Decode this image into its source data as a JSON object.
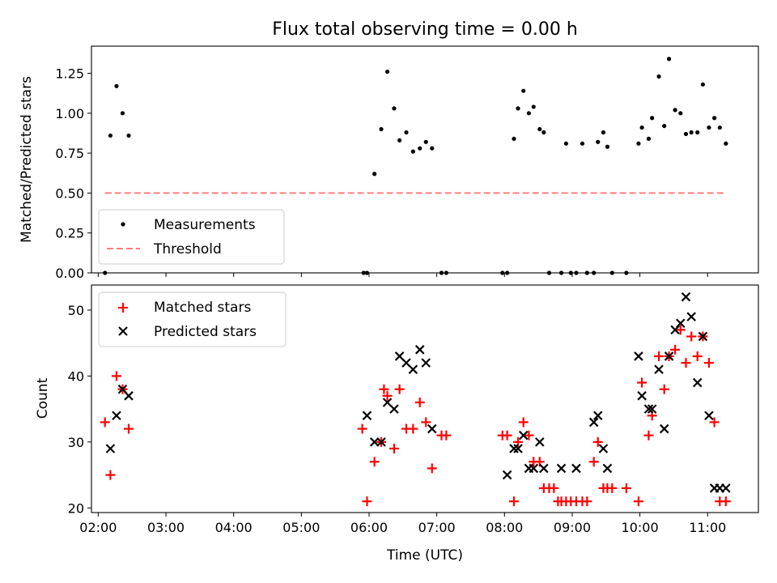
{
  "figure": {
    "title": "Flux total observing time = 0.00 h"
  },
  "chart_data": [
    {
      "type": "scatter",
      "panel": "top",
      "ylabel": "Matched/Predicted stars",
      "xlim": [
        1.9,
        11.75
      ],
      "ylim": [
        0,
        1.42
      ],
      "yticks": [
        0.0,
        0.25,
        0.5,
        0.75,
        1.0,
        1.25
      ],
      "ytick_labels": [
        "0.00",
        "0.25",
        "0.50",
        "0.75",
        "1.00",
        "1.25"
      ],
      "xticks": [
        2,
        3,
        4,
        5,
        6,
        7,
        8,
        9,
        10,
        11
      ],
      "legend": {
        "placement": "lower-left",
        "entries": [
          {
            "label": "Measurements",
            "marker": "dot",
            "color": "#000000"
          },
          {
            "label": "Threshold",
            "marker": "dashed-line",
            "color": "#ff7f7f"
          }
        ]
      },
      "series": [
        {
          "name": "Measurements",
          "color": "#000000",
          "marker": "dot",
          "x": [
            2.1,
            2.18,
            2.27,
            2.36,
            2.45,
            5.92,
            5.97,
            6.08,
            6.18,
            6.27,
            6.37,
            6.45,
            6.55,
            6.65,
            6.75,
            6.84,
            6.93,
            7.07,
            7.14,
            7.97,
            8.04,
            8.14,
            8.2,
            8.28,
            8.36,
            8.43,
            8.52,
            8.58,
            8.66,
            8.84,
            8.91,
            8.98,
            9.06,
            9.15,
            9.22,
            9.32,
            9.38,
            9.46,
            9.52,
            9.59,
            9.8,
            9.98,
            10.03,
            10.13,
            10.18,
            10.28,
            10.36,
            10.43,
            10.52,
            10.6,
            10.68,
            10.76,
            10.85,
            10.93,
            11.02,
            11.1,
            11.18,
            11.27
          ],
          "y": [
            0.0,
            0.86,
            1.17,
            1.0,
            0.86,
            0.0,
            0.0,
            0.62,
            0.9,
            1.26,
            1.03,
            0.83,
            0.88,
            0.76,
            0.78,
            0.82,
            0.78,
            0.0,
            0.0,
            0.0,
            0.0,
            0.84,
            1.03,
            1.14,
            1.0,
            1.04,
            0.9,
            0.88,
            0.0,
            0.0,
            0.81,
            0.0,
            0.0,
            0.81,
            0.0,
            0.0,
            0.82,
            0.88,
            0.79,
            0.0,
            0.0,
            0.81,
            0.91,
            0.84,
            0.97,
            1.23,
            0.92,
            1.34,
            1.02,
            1.0,
            0.87,
            0.88,
            0.88,
            1.18,
            0.91,
            0.97,
            0.91,
            0.81
          ]
        },
        {
          "name": "Threshold",
          "color": "#ff7f7f",
          "style": "dashed",
          "x": [
            2.1,
            11.27
          ],
          "y": [
            0.5,
            0.5
          ]
        }
      ]
    },
    {
      "type": "scatter",
      "panel": "bottom",
      "ylabel": "Count",
      "xlabel": "Time (UTC)",
      "xlim": [
        1.9,
        11.75
      ],
      "ylim": [
        19.3,
        53.8
      ],
      "yticks": [
        20,
        30,
        40,
        50
      ],
      "ytick_labels": [
        "20",
        "30",
        "40",
        "50"
      ],
      "xticks": [
        2,
        3,
        4,
        5,
        6,
        7,
        8,
        9,
        10,
        11
      ],
      "xtick_labels": [
        "02:00",
        "03:00",
        "04:00",
        "05:00",
        "06:00",
        "07:00",
        "08:00",
        "09:00",
        "10:00",
        "11:00"
      ],
      "legend": {
        "placement": "upper-left",
        "entries": [
          {
            "label": "Matched stars",
            "marker": "plus",
            "color": "#ff0000"
          },
          {
            "label": "Predicted stars",
            "marker": "x",
            "color": "#000000"
          }
        ]
      },
      "series": [
        {
          "name": "Matched stars",
          "color": "#ff0000",
          "marker": "plus",
          "x": [
            2.1,
            2.18,
            2.27,
            2.36,
            2.45,
            5.9,
            5.97,
            6.08,
            6.18,
            6.22,
            6.27,
            6.37,
            6.45,
            6.55,
            6.65,
            6.75,
            6.84,
            6.93,
            7.07,
            7.14,
            7.97,
            8.04,
            8.14,
            8.2,
            8.28,
            8.36,
            8.43,
            8.52,
            8.58,
            8.66,
            8.73,
            8.79,
            8.84,
            8.91,
            8.98,
            9.06,
            9.15,
            9.22,
            9.32,
            9.38,
            9.46,
            9.52,
            9.59,
            9.8,
            9.98,
            10.03,
            10.13,
            10.18,
            10.28,
            10.36,
            10.43,
            10.52,
            10.6,
            10.68,
            10.76,
            10.85,
            10.93,
            11.02,
            11.1,
            11.18,
            11.27
          ],
          "y": [
            33,
            25,
            40,
            38,
            32,
            32,
            21,
            27,
            30,
            38,
            37,
            29,
            38,
            32,
            32,
            36,
            33,
            26,
            31,
            31,
            31,
            31,
            21,
            30,
            33,
            31,
            27,
            27,
            23,
            23,
            23,
            21,
            21,
            21,
            21,
            21,
            21,
            21,
            27,
            30,
            23,
            23,
            23,
            23,
            21,
            39,
            31,
            34,
            43,
            38,
            43,
            44,
            47,
            42,
            46,
            43,
            46,
            42,
            33,
            21,
            21
          ]
        },
        {
          "name": "Predicted stars",
          "color": "#000000",
          "marker": "x",
          "x": [
            2.18,
            2.27,
            2.36,
            2.45,
            5.97,
            6.08,
            6.18,
            6.27,
            6.37,
            6.45,
            6.55,
            6.65,
            6.75,
            6.84,
            6.93,
            8.04,
            8.14,
            8.2,
            8.28,
            8.36,
            8.43,
            8.52,
            8.58,
            8.84,
            9.06,
            9.32,
            9.38,
            9.46,
            9.52,
            9.98,
            10.03,
            10.13,
            10.18,
            10.28,
            10.36,
            10.43,
            10.52,
            10.6,
            10.68,
            10.76,
            10.85,
            10.93,
            11.02,
            11.1,
            11.18,
            11.27
          ],
          "y": [
            29,
            34,
            38,
            37,
            34,
            30,
            30,
            36,
            35,
            43,
            42,
            41,
            44,
            42,
            32,
            25,
            29,
            29,
            31,
            26,
            26,
            30,
            26,
            26,
            26,
            33,
            34,
            29,
            26,
            43,
            37,
            35,
            35,
            41,
            32,
            43,
            47,
            48,
            52,
            49,
            39,
            46,
            34,
            23,
            23,
            23
          ]
        }
      ]
    }
  ]
}
